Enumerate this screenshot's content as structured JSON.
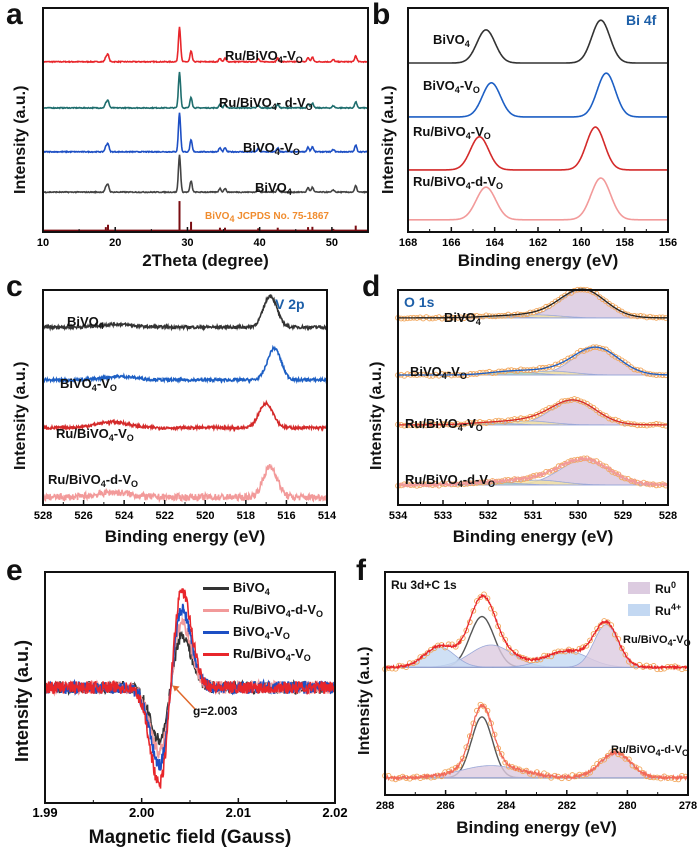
{
  "chart_data": [
    {
      "panel": "a",
      "type": "line",
      "xlabel": "2Theta (degree)",
      "ylabel": "Intensity (a.u.)",
      "xlim": [
        10,
        55
      ],
      "ylim": [
        0,
        5
      ],
      "xticks": [
        10,
        20,
        30,
        40,
        50
      ],
      "peak_width": 0.15,
      "peak_pattern": [
        [
          18.7,
          0.12
        ],
        [
          19.0,
          0.2
        ],
        [
          28.9,
          1.0
        ],
        [
          30.5,
          0.3
        ],
        [
          34.5,
          0.1
        ],
        [
          35.2,
          0.1
        ],
        [
          39.8,
          0.08
        ],
        [
          42.5,
          0.1
        ],
        [
          46.7,
          0.12
        ],
        [
          47.3,
          0.13
        ],
        [
          50.2,
          0.06
        ],
        [
          53.3,
          0.17
        ]
      ],
      "series": [
        {
          "label": [
            [
              "Ru/BiVO",
              0
            ],
            [
              "4",
              1
            ],
            [
              "-V",
              0
            ],
            [
              "O",
              1
            ]
          ],
          "color": "#e8262b",
          "offset": 3.8,
          "scale": 0.78,
          "noise": 0.01
        },
        {
          "label": [
            [
              "Ru/BiVO",
              0
            ],
            [
              "4",
              1
            ],
            [
              "- d-V",
              0
            ],
            [
              "O",
              1
            ]
          ],
          "color": "#1f6e6e",
          "offset": 2.77,
          "scale": 0.8,
          "noise": 0.01
        },
        {
          "label": [
            [
              "BiVO",
              0
            ],
            [
              "4",
              1
            ],
            [
              "-V",
              0
            ],
            [
              "O",
              1
            ]
          ],
          "color": "#1d4fc4",
          "offset": 1.79,
          "scale": 0.87,
          "noise": 0.01
        },
        {
          "label": [
            [
              "BiVO",
              0
            ],
            [
              "4",
              1
            ]
          ],
          "color": "#444444",
          "offset": 0.89,
          "scale": 0.83,
          "noise": 0.01
        },
        {
          "label": [
            [
              "BiVO",
              0
            ],
            [
              "4",
              1
            ],
            [
              "  JCPDS No.  75-1867",
              0
            ]
          ],
          "label_color": "#f08c2e",
          "color": "#7a0d12",
          "offset": 0.03,
          "scale": 0.66,
          "kind": "sticks"
        }
      ]
    },
    {
      "panel": "b",
      "type": "line",
      "title": "Bi 4f",
      "title_color": "#1d5fa8",
      "xlabel": "Binding energy (eV)",
      "ylabel": "Intensity (a.u.)",
      "xlim": [
        168,
        156
      ],
      "ylim": [
        0,
        4.4
      ],
      "xticks": [
        168,
        166,
        164,
        162,
        160,
        158,
        156
      ],
      "series": [
        {
          "label": [
            [
              "BiVO",
              0
            ],
            [
              "4",
              1
            ]
          ],
          "color": "#333333",
          "offset": 3.32,
          "peaks": [
            [
              164.4,
              0.65,
              0.42
            ],
            [
              159.1,
              0.84,
              0.42
            ]
          ]
        },
        {
          "label": [
            [
              "BiVO",
              0
            ],
            [
              "4",
              1
            ],
            [
              "-V",
              0
            ],
            [
              "O",
              1
            ]
          ],
          "color": "#1d5fc4",
          "offset": 2.26,
          "peaks": [
            [
              164.15,
              0.67,
              0.42
            ],
            [
              158.85,
              0.86,
              0.42
            ]
          ]
        },
        {
          "label": [
            [
              "Ru/BiVO",
              0
            ],
            [
              "4",
              1
            ],
            [
              "-V",
              0
            ],
            [
              "O",
              1
            ]
          ],
          "color": "#d42a2a",
          "offset": 1.22,
          "peaks": [
            [
              164.7,
              0.65,
              0.42
            ],
            [
              159.35,
              0.84,
              0.42
            ]
          ]
        },
        {
          "label": [
            [
              "Ru/BiVO",
              0
            ],
            [
              "4",
              1
            ],
            [
              "-d-V",
              0
            ],
            [
              "O",
              1
            ]
          ],
          "color": "#f29a9a",
          "offset": 0.24,
          "peaks": [
            [
              164.4,
              0.64,
              0.45
            ],
            [
              159.1,
              0.82,
              0.45
            ]
          ]
        }
      ]
    },
    {
      "panel": "c",
      "type": "line",
      "title": "V 2p",
      "title_color": "#1d5fa8",
      "xlabel": "Binding energy (eV)",
      "ylabel": "Intensity (a.u.)",
      "xlim": [
        528,
        514
      ],
      "ylim": [
        0,
        4.4
      ],
      "xticks": [
        528,
        526,
        524,
        522,
        520,
        518,
        516,
        514
      ],
      "series": [
        {
          "label": [
            [
              "BiVO",
              0
            ],
            [
              "4",
              1
            ]
          ],
          "color": "#333333",
          "offset": 3.64,
          "noise": 0.03,
          "peaks": [
            [
              516.8,
              0.64,
              0.33
            ],
            [
              524.4,
              0.06,
              0.8
            ]
          ]
        },
        {
          "label": [
            [
              "BiVO",
              0
            ],
            [
              "4",
              1
            ],
            [
              "-V",
              0
            ],
            [
              "O",
              1
            ]
          ],
          "color": "#1d5fc4",
          "offset": 2.56,
          "noise": 0.03,
          "peaks": [
            [
              516.6,
              0.65,
              0.33
            ],
            [
              524.2,
              0.07,
              0.8
            ]
          ]
        },
        {
          "label": [
            [
              "Ru/BiVO",
              0
            ],
            [
              "4",
              1
            ],
            [
              "-V",
              0
            ],
            [
              "O",
              1
            ]
          ],
          "color": "#d42a2a",
          "offset": 1.58,
          "noise": 0.03,
          "peaks": [
            [
              517.0,
              0.5,
              0.35
            ],
            [
              524.6,
              0.12,
              0.8
            ]
          ]
        },
        {
          "label": [
            [
              "Ru/BiVO",
              0
            ],
            [
              "4",
              1
            ],
            [
              "-d-V",
              0
            ],
            [
              "O",
              1
            ]
          ],
          "color": "#f29a9a",
          "offset": 0.16,
          "noise": 0.07,
          "peaks": [
            [
              516.8,
              0.62,
              0.35
            ],
            [
              524.5,
              0.1,
              0.8
            ]
          ]
        }
      ]
    },
    {
      "panel": "d",
      "type": "line",
      "title": "O 1s",
      "title_color": "#1d5fa8",
      "xlabel": "Binding energy (eV)",
      "ylabel": "Intensity (a.u.)",
      "xlim": [
        534,
        528
      ],
      "ylim": [
        0,
        4.4
      ],
      "xticks": [
        534,
        533,
        532,
        531,
        530,
        529,
        528
      ],
      "series": [
        {
          "label": [
            [
              "BiVO",
              0
            ],
            [
              "4",
              1
            ]
          ],
          "color": "#222222",
          "offset": 3.83,
          "markers": "#f2a65a",
          "components": [
            {
              "c": 529.9,
              "h": 0.58,
              "w": 0.5,
              "fill": "#d8c5dd"
            },
            {
              "c": 530.9,
              "h": 0.06,
              "w": 0.5,
              "fill": "#f3e2a0"
            },
            {
              "c": 531.8,
              "h": 0.03,
              "w": 0.5,
              "fill": "#a9d3c4"
            }
          ]
        },
        {
          "label": [
            [
              "BiVO",
              0
            ],
            [
              "4",
              1
            ],
            [
              "-V",
              0
            ],
            [
              "O",
              1
            ]
          ],
          "color": "#1d5fc4",
          "offset": 2.66,
          "markers": "#f2a65a",
          "components": [
            {
              "c": 529.6,
              "h": 0.56,
              "w": 0.5,
              "fill": "#d8c5dd"
            },
            {
              "c": 530.6,
              "h": 0.08,
              "w": 0.5,
              "fill": "#f3e2a0"
            },
            {
              "c": 531.5,
              "h": 0.07,
              "w": 0.5,
              "fill": "#a9d3c4"
            }
          ]
        },
        {
          "label": [
            [
              "Ru/BiVO",
              0
            ],
            [
              "4",
              1
            ],
            [
              "-V",
              0
            ],
            [
              "O",
              1
            ]
          ],
          "color": "#d42a2a",
          "offset": 1.64,
          "markers": "#f2a65a",
          "components": [
            {
              "c": 530.1,
              "h": 0.5,
              "w": 0.5,
              "fill": "#d8c5dd"
            },
            {
              "c": 531.1,
              "h": 0.08,
              "w": 0.5,
              "fill": "#f3e2a0"
            },
            {
              "c": 532.0,
              "h": 0.04,
              "w": 0.5,
              "fill": "#a9d3c4"
            }
          ]
        },
        {
          "label": [
            [
              "Ru/BiVO",
              0
            ],
            [
              "4",
              1
            ],
            [
              "-d-V",
              0
            ],
            [
              "O",
              1
            ]
          ],
          "color": "#f29a9a",
          "offset": 0.41,
          "noise": 0.03,
          "markers": "#f2a65a",
          "components": [
            {
              "c": 529.85,
              "h": 0.52,
              "w": 0.55,
              "fill": "#d8c5dd"
            },
            {
              "c": 530.9,
              "h": 0.1,
              "w": 0.55,
              "fill": "#f3e2a0"
            },
            {
              "c": 531.9,
              "h": 0.05,
              "w": 0.55,
              "fill": "#a9d3c4"
            }
          ]
        }
      ]
    },
    {
      "panel": "e",
      "type": "line",
      "xlabel": "Magnetic field (Gauss)",
      "ylabel": "Intensity (a.u.)",
      "xlim": [
        1.99,
        2.02
      ],
      "ylim": [
        -1.1,
        1.1
      ],
      "xticks": [
        1.99,
        2.0,
        2.01,
        2.02
      ],
      "xtick_labels": [
        "1.99",
        "2.00",
        "2.01",
        "2.02"
      ],
      "annotation": {
        "text": "g=2.003",
        "x": 2.003,
        "color": "#e0682a"
      },
      "legend": "top-right",
      "series": [
        {
          "label": [
            [
              "BiVO",
              0
            ],
            [
              "4",
              1
            ]
          ],
          "color": "#333333",
          "offset": 0,
          "noise": 0.06,
          "kind": "deriv",
          "peaks": [
            [
              2.003,
              0.5,
              0.0012
            ]
          ]
        },
        {
          "label": [
            [
              "Ru/BiVO",
              0
            ],
            [
              "4",
              1
            ],
            [
              "-d-V",
              0
            ],
            [
              "O",
              1
            ]
          ],
          "color": "#f29a9a",
          "offset": 0,
          "noise": 0.06,
          "kind": "deriv",
          "peaks": [
            [
              2.003,
              0.62,
              0.0012
            ]
          ]
        },
        {
          "label": [
            [
              "BiVO",
              0
            ],
            [
              "4",
              1
            ],
            [
              "-V",
              0
            ],
            [
              "O",
              1
            ]
          ],
          "color": "#1d4fc4",
          "offset": 0,
          "noise": 0.06,
          "kind": "deriv",
          "peaks": [
            [
              2.003,
              0.74,
              0.0012
            ]
          ]
        },
        {
          "label": [
            [
              "Ru/BiVO",
              0
            ],
            [
              "4",
              1
            ],
            [
              "-V",
              0
            ],
            [
              "O",
              1
            ]
          ],
          "color": "#e8262b",
          "offset": 0,
          "noise": 0.06,
          "kind": "deriv",
          "peaks": [
            [
              2.003,
              0.92,
              0.0012
            ]
          ]
        }
      ]
    },
    {
      "panel": "f",
      "type": "line",
      "title": "Ru 3d+C 1s",
      "title_color": "#111111",
      "xlabel": "Binding energy (eV)",
      "ylabel": "Intensity (a.u.)",
      "xlim": [
        288,
        278
      ],
      "ylim": [
        0,
        2.2
      ],
      "xticks": [
        288,
        286,
        284,
        282,
        280,
        278
      ],
      "legend": "top-right",
      "legend_items": [
        {
          "label": [
            [
              "Ru",
              0
            ],
            [
              "0",
              2
            ]
          ],
          "color": "#dccbe0"
        },
        {
          "label": [
            [
              "Ru",
              0
            ],
            [
              "4+",
              2
            ]
          ],
          "color": "#c3d8f2"
        }
      ],
      "series": [
        {
          "label": [
            [
              "Ru/BiVO",
              0
            ],
            [
              "4",
              1
            ],
            [
              "-V",
              0
            ],
            [
              "O",
              1
            ]
          ],
          "color": "#e8262b",
          "offset": 1.26,
          "noise": 0.01,
          "markers": "#f2a65a",
          "components": [
            {
              "c": 284.8,
              "h": 0.5,
              "w": 0.4,
              "fill": "none",
              "stroke": "#555555"
            },
            {
              "c": 284.5,
              "h": 0.22,
              "w": 0.7,
              "fill": "#dccbe0"
            },
            {
              "c": 286.2,
              "h": 0.2,
              "w": 0.5,
              "fill": "#c3d8f2"
            },
            {
              "c": 282.0,
              "h": 0.16,
              "w": 0.7,
              "fill": "#c3d8f2"
            },
            {
              "c": 280.7,
              "h": 0.42,
              "w": 0.4,
              "fill": "#dccbe0"
            }
          ]
        },
        {
          "label": [
            [
              "Ru/BiVO",
              0
            ],
            [
              "4",
              1
            ],
            [
              "-d-V",
              0
            ],
            [
              "O",
              1
            ]
          ],
          "color": "#f26a5a",
          "offset": 0.17,
          "noise": 0.015,
          "markers": "#f2a65a",
          "components": [
            {
              "c": 284.8,
              "h": 0.6,
              "w": 0.35,
              "fill": "none",
              "stroke": "#555555"
            },
            {
              "c": 284.5,
              "h": 0.12,
              "w": 1.0,
              "fill": "#dccbe0"
            },
            {
              "c": 280.4,
              "h": 0.25,
              "w": 0.5,
              "fill": "#dccbe0"
            }
          ]
        }
      ]
    }
  ]
}
